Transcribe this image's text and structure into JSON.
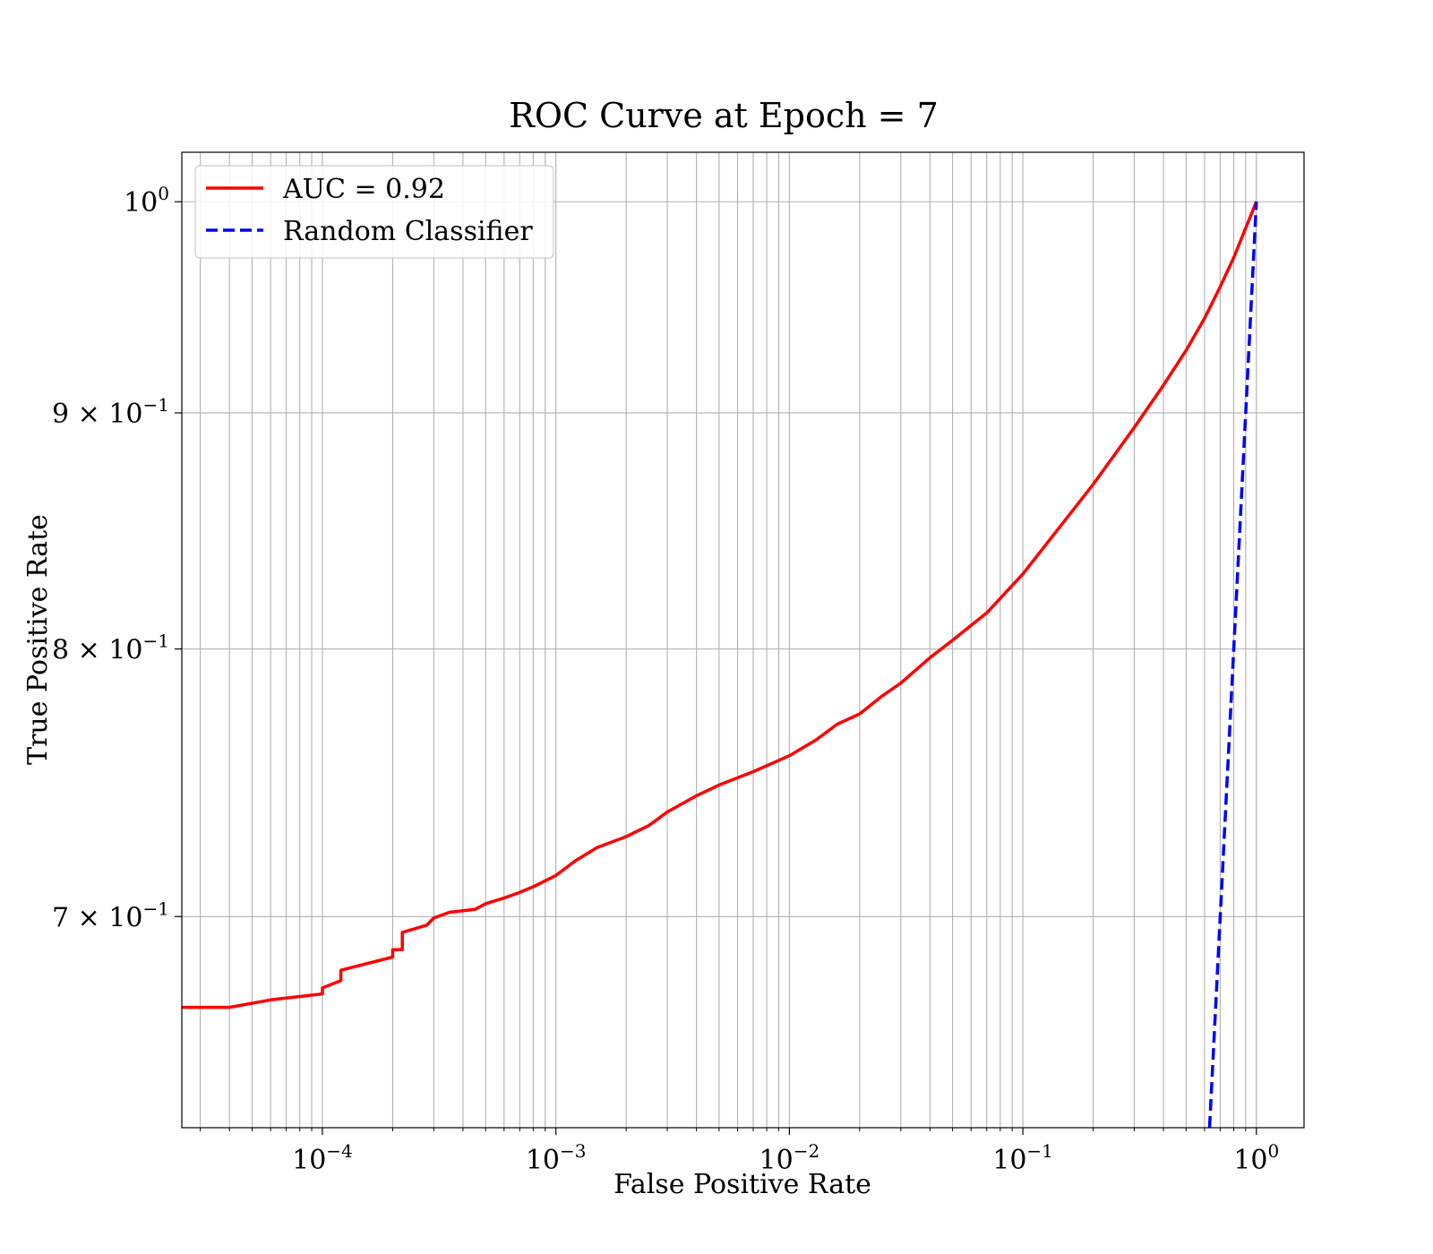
{
  "chart_data": {
    "type": "line",
    "title": "ROC Curve at Epoch = 7",
    "xlabel": "False Positive Rate",
    "ylabel": "True Positive Rate",
    "xscale": "log",
    "yscale": "log",
    "xlim": [
      2.5e-05,
      1.6
    ],
    "ylim": [
      0.63,
      1.025
    ],
    "grid": "both-major-minor",
    "legend_position": "top-left",
    "x_ticks": [
      {
        "value": 0.0001,
        "base": "10",
        "exp": "−4"
      },
      {
        "value": 0.001,
        "base": "10",
        "exp": "−3"
      },
      {
        "value": 0.01,
        "base": "10",
        "exp": "−2"
      },
      {
        "value": 0.1,
        "base": "10",
        "exp": "−1"
      },
      {
        "value": 1,
        "base": "10",
        "exp": "0"
      }
    ],
    "y_ticks": [
      {
        "value": 1.0,
        "base": "10",
        "exp": "0"
      },
      {
        "value": 0.9,
        "base": "9 × 10",
        "exp": "−1"
      },
      {
        "value": 0.8,
        "base": "8 × 10",
        "exp": "−1"
      },
      {
        "value": 0.7,
        "base": "7 × 10",
        "exp": "−1"
      }
    ],
    "series": [
      {
        "name": "AUC = 0.92",
        "color": "#ff0000",
        "style": "solid",
        "x": [
          2.5e-05,
          4e-05,
          6e-05,
          0.0001,
          0.0001,
          0.00012,
          0.00012,
          0.0002,
          0.0002,
          0.00022,
          0.00022,
          0.00028,
          0.0003,
          0.00035,
          0.00045,
          0.0005,
          0.0006,
          0.0007,
          0.0008,
          0.001,
          0.0012,
          0.0015,
          0.002,
          0.0025,
          0.003,
          0.004,
          0.005,
          0.007,
          0.01,
          0.013,
          0.016,
          0.02,
          0.025,
          0.03,
          0.04,
          0.05,
          0.07,
          0.1,
          0.15,
          0.2,
          0.3,
          0.4,
          0.5,
          0.6,
          0.7,
          0.8,
          1.0
        ],
        "y": [
          0.669,
          0.669,
          0.6715,
          0.6735,
          0.6755,
          0.678,
          0.6815,
          0.686,
          0.6885,
          0.6885,
          0.6945,
          0.697,
          0.6995,
          0.7015,
          0.7025,
          0.7045,
          0.7065,
          0.7085,
          0.7105,
          0.7145,
          0.7195,
          0.7245,
          0.7285,
          0.7325,
          0.7375,
          0.7435,
          0.7475,
          0.7525,
          0.7585,
          0.7645,
          0.7705,
          0.7745,
          0.7815,
          0.7865,
          0.7965,
          0.8035,
          0.8145,
          0.8305,
          0.8525,
          0.8685,
          0.8935,
          0.9125,
          0.9285,
          0.9435,
          0.9585,
          0.9725,
          1.0
        ]
      },
      {
        "name": "Random Classifier",
        "color": "#0000ff",
        "style": "dashed",
        "x": [
          0.63,
          1.0
        ],
        "y": [
          0.63,
          1.0
        ]
      }
    ]
  }
}
